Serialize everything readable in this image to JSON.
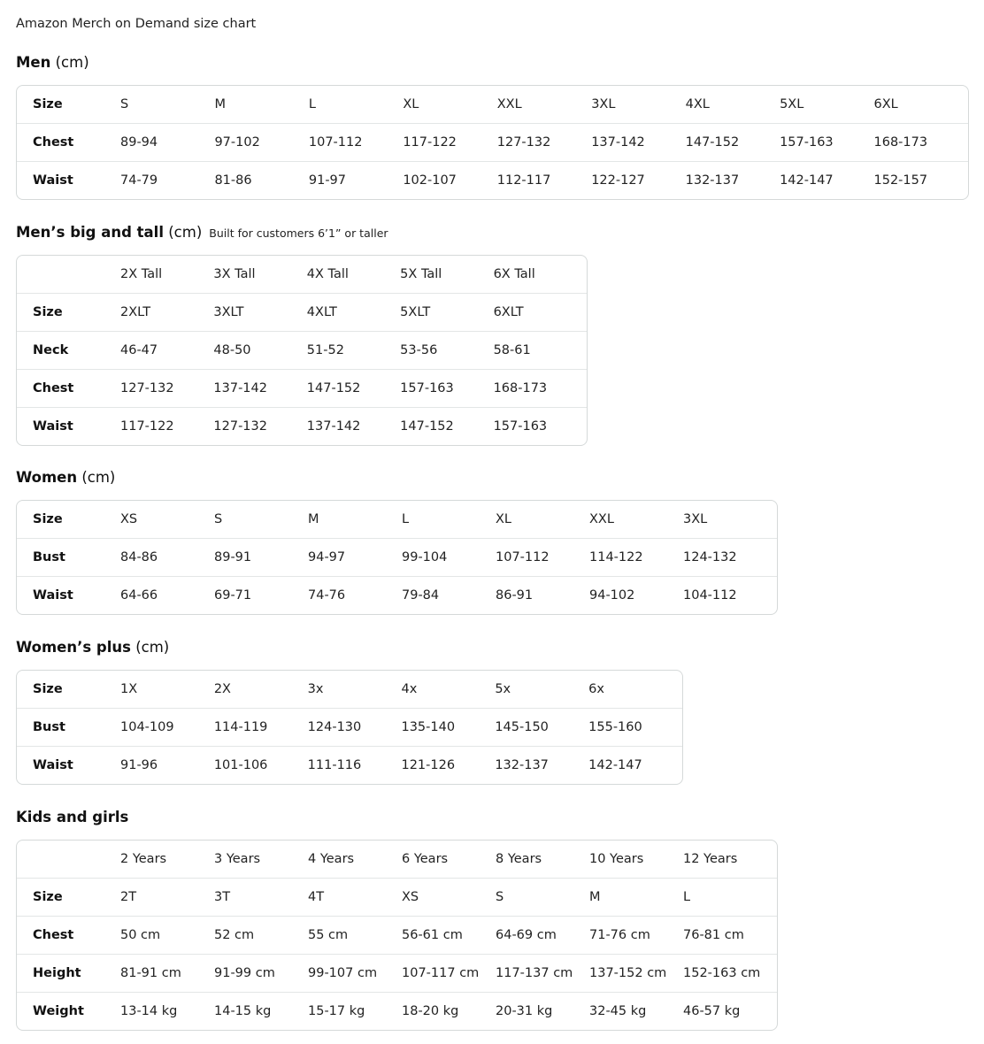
{
  "title": "Amazon Merch on Demand size chart",
  "sections": [
    {
      "title": "Men",
      "unit": "(cm)",
      "note": "",
      "rows": [
        {
          "label": "Size",
          "values": [
            "S",
            "M",
            "L",
            "XL",
            "XXL",
            "3XL",
            "4XL",
            "5XL",
            "6XL"
          ]
        },
        {
          "label": "Chest",
          "values": [
            "89-94",
            "97-102",
            "107-112",
            "117-122",
            "127-132",
            "137-142",
            "147-152",
            "157-163",
            "168-173"
          ]
        },
        {
          "label": "Waist",
          "values": [
            "74-79",
            "81-86",
            "91-97",
            "102-107",
            "112-117",
            "122-127",
            "132-137",
            "142-147",
            "152-157"
          ]
        }
      ]
    },
    {
      "title": "Men’s big and tall",
      "unit": "(cm)",
      "note": "Built for customers 6’1” or taller",
      "rows": [
        {
          "label": "",
          "values": [
            "2X Tall",
            "3X Tall",
            "4X Tall",
            "5X Tall",
            "6X Tall"
          ]
        },
        {
          "label": "Size",
          "values": [
            "2XLT",
            "3XLT",
            "4XLT",
            "5XLT",
            "6XLT"
          ]
        },
        {
          "label": "Neck",
          "values": [
            "46-47",
            "48-50",
            "51-52",
            "53-56",
            "58-61"
          ]
        },
        {
          "label": "Chest",
          "values": [
            "127-132",
            "137-142",
            "147-152",
            "157-163",
            "168-173"
          ]
        },
        {
          "label": "Waist",
          "values": [
            "117-122",
            "127-132",
            "137-142",
            "147-152",
            "157-163"
          ]
        }
      ]
    },
    {
      "title": "Women",
      "unit": "(cm)",
      "note": "",
      "rows": [
        {
          "label": "Size",
          "values": [
            "XS",
            "S",
            "M",
            "L",
            "XL",
            "XXL",
            "3XL"
          ]
        },
        {
          "label": "Bust",
          "values": [
            "84-86",
            "89-91",
            "94-97",
            "99-104",
            "107-112",
            "114-122",
            "124-132"
          ]
        },
        {
          "label": "Waist",
          "values": [
            "64-66",
            "69-71",
            "74-76",
            "79-84",
            "86-91",
            "94-102",
            "104-112"
          ]
        }
      ]
    },
    {
      "title": "Women’s plus",
      "unit": "(cm)",
      "note": "",
      "rows": [
        {
          "label": "Size",
          "values": [
            "1X",
            "2X",
            "3x",
            "4x",
            "5x",
            "6x"
          ]
        },
        {
          "label": "Bust",
          "values": [
            "104-109",
            "114-119",
            "124-130",
            "135-140",
            "145-150",
            "155-160"
          ]
        },
        {
          "label": "Waist",
          "values": [
            "91-96",
            "101-106",
            "111-116",
            "121-126",
            "132-137",
            "142-147"
          ]
        }
      ]
    },
    {
      "title": "Kids and girls",
      "unit": "",
      "note": "",
      "rows": [
        {
          "label": "",
          "values": [
            "2 Years",
            "3 Years",
            "4 Years",
            "6 Years",
            "8 Years",
            "10 Years",
            "12 Years"
          ]
        },
        {
          "label": "Size",
          "values": [
            "2T",
            "3T",
            "4T",
            "XS",
            "S",
            "M",
            "L"
          ]
        },
        {
          "label": "Chest",
          "values": [
            "50 cm",
            "52 cm",
            "55 cm",
            "56-61 cm",
            "64-69 cm",
            "71-76 cm",
            "76-81 cm"
          ]
        },
        {
          "label": "Height",
          "values": [
            "81-91 cm",
            "91-99 cm",
            "99-107 cm",
            "107-117 cm",
            "117-137 cm",
            "137-152 cm",
            "152-163 cm"
          ]
        },
        {
          "label": "Weight",
          "values": [
            "13-14 kg",
            "14-15 kg",
            "15-17 kg",
            "18-20 kg",
            "20-31 kg",
            "32-45 kg",
            "46-57 kg"
          ]
        }
      ]
    }
  ]
}
